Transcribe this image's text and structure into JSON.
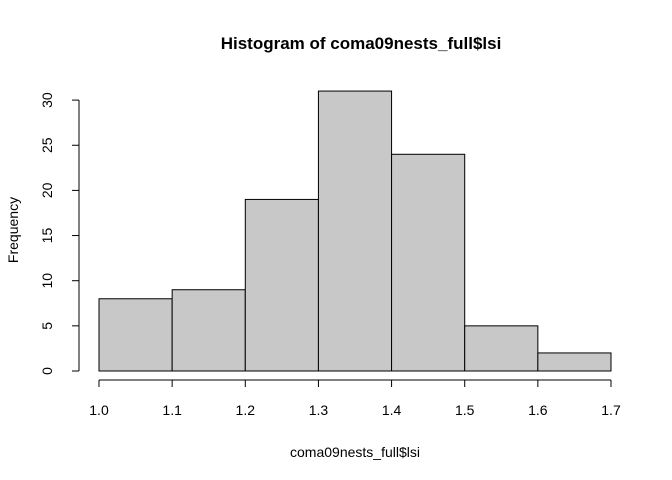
{
  "chart_data": {
    "type": "bar",
    "title": "Histogram of coma09nests_full$lsi",
    "xlabel": "coma09nests_full$lsi",
    "ylabel": "Frequency",
    "bins": [
      {
        "start": 1.0,
        "end": 1.1,
        "count": 8
      },
      {
        "start": 1.1,
        "end": 1.2,
        "count": 9
      },
      {
        "start": 1.2,
        "end": 1.3,
        "count": 19
      },
      {
        "start": 1.3,
        "end": 1.4,
        "count": 31
      },
      {
        "start": 1.4,
        "end": 1.5,
        "count": 24
      },
      {
        "start": 1.5,
        "end": 1.6,
        "count": 5
      },
      {
        "start": 1.6,
        "end": 1.7,
        "count": 2
      }
    ],
    "xlim": [
      1.0,
      1.7
    ],
    "ylim": [
      0,
      31
    ],
    "x_ticks": [
      "1.0",
      "1.1",
      "1.2",
      "1.3",
      "1.4",
      "1.5",
      "1.6",
      "1.7"
    ],
    "y_ticks": [
      "0",
      "5",
      "10",
      "15",
      "20",
      "25",
      "30"
    ],
    "bar_color": "#c8c8c8",
    "grid": false,
    "legend": "none"
  }
}
